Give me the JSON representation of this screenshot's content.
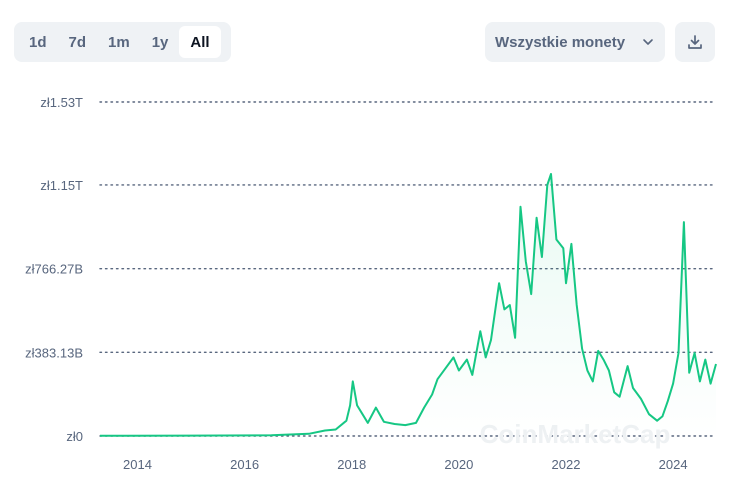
{
  "toolbar": {
    "ranges": [
      {
        "label": "1d",
        "active": false
      },
      {
        "label": "7d",
        "active": false
      },
      {
        "label": "1m",
        "active": false
      },
      {
        "label": "1y",
        "active": false
      },
      {
        "label": "All",
        "active": true
      }
    ],
    "coin_select": "Wszystkie monety",
    "download_icon": "download-icon"
  },
  "watermark": "CoinMarketCap",
  "colors": {
    "line": "#16c784",
    "grid": "#58667e",
    "text": "#58667e"
  },
  "chart_data": {
    "type": "area",
    "title": "",
    "xlabel": "",
    "ylabel": "",
    "currency_prefix": "zł",
    "y_ticks": [
      {
        "value": 0,
        "label": "zł0"
      },
      {
        "value": 383.13,
        "label": "zł383.13B"
      },
      {
        "value": 766.27,
        "label": "zł766.27B"
      },
      {
        "value": 1150,
        "label": "zł1.15T"
      },
      {
        "value": 1530,
        "label": "zł1.53T"
      }
    ],
    "ylim": [
      0,
      1530
    ],
    "y_unit": "zł billions",
    "x_ticks": [
      "2014",
      "2016",
      "2018",
      "2020",
      "2022",
      "2024"
    ],
    "xlim": [
      2013.3,
      2024.8
    ],
    "grid": "horizontal dotted",
    "series": [
      {
        "points": [
          [
            2013.3,
            1
          ],
          [
            2015.0,
            2
          ],
          [
            2016.5,
            3
          ],
          [
            2017.2,
            10
          ],
          [
            2017.5,
            25
          ],
          [
            2017.7,
            30
          ],
          [
            2017.9,
            70
          ],
          [
            2017.97,
            140
          ],
          [
            2018.02,
            250
          ],
          [
            2018.1,
            140
          ],
          [
            2018.2,
            100
          ],
          [
            2018.3,
            60
          ],
          [
            2018.45,
            130
          ],
          [
            2018.6,
            65
          ],
          [
            2018.8,
            55
          ],
          [
            2019.0,
            50
          ],
          [
            2019.2,
            60
          ],
          [
            2019.35,
            130
          ],
          [
            2019.5,
            190
          ],
          [
            2019.6,
            260
          ],
          [
            2019.75,
            310
          ],
          [
            2019.9,
            360
          ],
          [
            2020.0,
            300
          ],
          [
            2020.15,
            350
          ],
          [
            2020.25,
            280
          ],
          [
            2020.4,
            480
          ],
          [
            2020.5,
            360
          ],
          [
            2020.6,
            440
          ],
          [
            2020.75,
            700
          ],
          [
            2020.85,
            580
          ],
          [
            2020.95,
            600
          ],
          [
            2021.05,
            450
          ],
          [
            2021.15,
            1050
          ],
          [
            2021.25,
            800
          ],
          [
            2021.35,
            650
          ],
          [
            2021.45,
            1000
          ],
          [
            2021.55,
            820
          ],
          [
            2021.65,
            1150
          ],
          [
            2021.72,
            1200
          ],
          [
            2021.82,
            900
          ],
          [
            2021.95,
            860
          ],
          [
            2022.0,
            700
          ],
          [
            2022.1,
            880
          ],
          [
            2022.2,
            600
          ],
          [
            2022.3,
            400
          ],
          [
            2022.4,
            300
          ],
          [
            2022.5,
            250
          ],
          [
            2022.6,
            390
          ],
          [
            2022.7,
            350
          ],
          [
            2022.8,
            300
          ],
          [
            2022.9,
            200
          ],
          [
            2023.0,
            180
          ],
          [
            2023.15,
            320
          ],
          [
            2023.25,
            220
          ],
          [
            2023.4,
            170
          ],
          [
            2023.55,
            100
          ],
          [
            2023.7,
            70
          ],
          [
            2023.8,
            90
          ],
          [
            2023.9,
            160
          ],
          [
            2024.0,
            240
          ],
          [
            2024.1,
            380
          ],
          [
            2024.2,
            980
          ],
          [
            2024.3,
            290
          ],
          [
            2024.4,
            380
          ],
          [
            2024.5,
            250
          ],
          [
            2024.6,
            350
          ],
          [
            2024.7,
            240
          ],
          [
            2024.8,
            330
          ]
        ]
      }
    ]
  }
}
